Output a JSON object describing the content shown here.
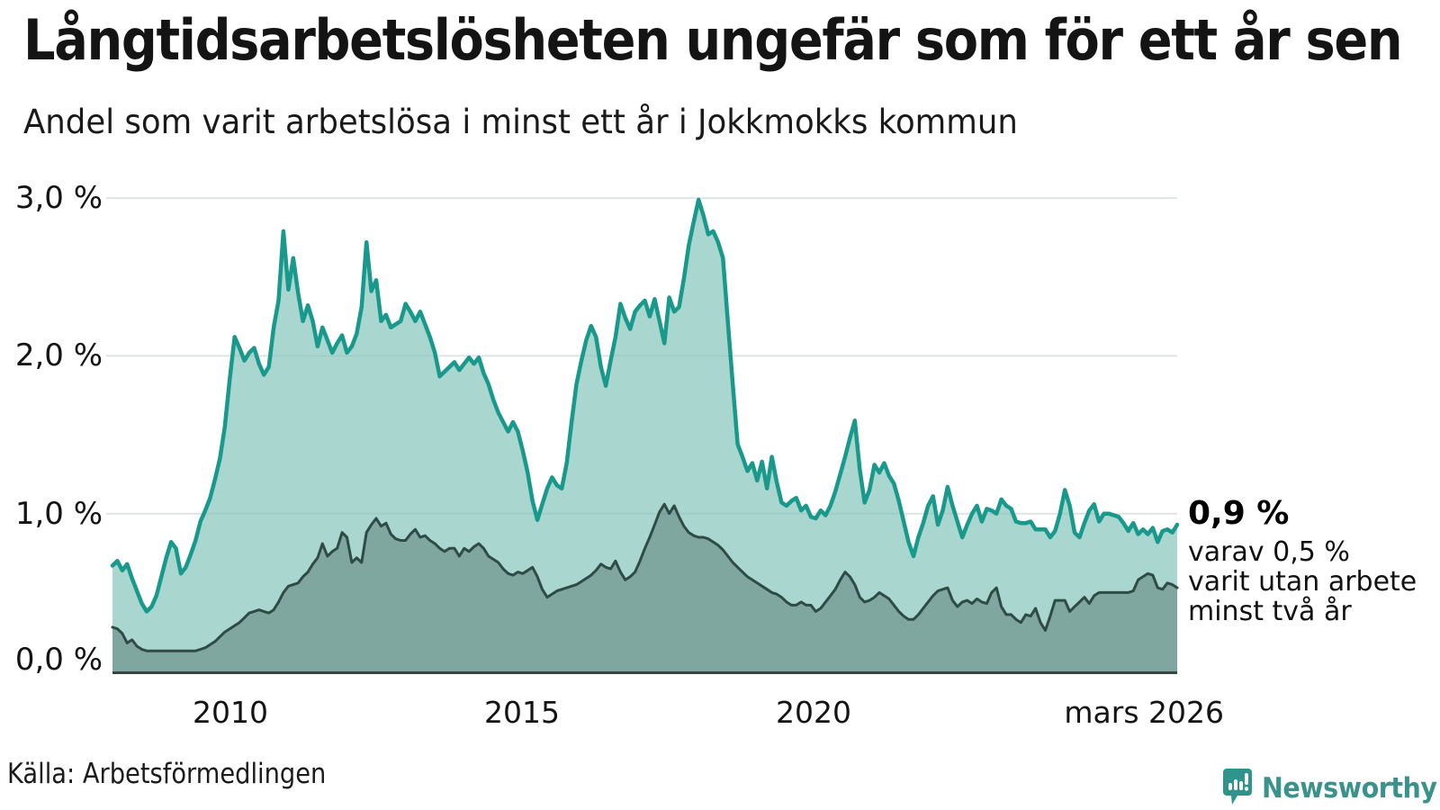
{
  "title": "Långtidsarbetslösheten ungefär som för ett år sen",
  "subtitle": "Andel som varit arbetslösa i minst ett år i Jokkmokks kommun",
  "source": "Källa: Arbetsförmedlingen",
  "branding": {
    "name": "Newsworthy",
    "bubble_color": "#2e948c",
    "text_color": "#3a928b"
  },
  "annotation": {
    "value_label": "0,9 %",
    "line1": "varav 0,5 %",
    "line2": "varit utan arbete",
    "line3": "minst två år"
  },
  "colors": {
    "line_1yr": "#18998b",
    "fill_1yr": "#84c4ba",
    "line_2yr": "#2e4b46",
    "fill_2yr_overlay": "#2e4b46",
    "gridline": "#e0e4e4",
    "axis_line": "#3a4542",
    "text": "#141414"
  },
  "chart_data": {
    "type": "area",
    "title": "Långtidsarbetslösheten ungefär som för ett år sen",
    "subtitle": "Andel som varit arbetslösa i minst ett år i Jokkmokks kommun",
    "unit": "%",
    "x_start": "2008-01",
    "x_end": "2026-03",
    "x_tick_labels": [
      "2010",
      "2015",
      "2020",
      "mars 2026"
    ],
    "y_tick_labels": [
      "0,0 %",
      "1,0 %",
      "2,0 %",
      "3,0 %"
    ],
    "y_tick_values": [
      0,
      1,
      2,
      3
    ],
    "ylim": [
      0,
      3.2
    ],
    "grid": true,
    "legend_position": "right-annotation",
    "series": [
      {
        "name": "Arbetslösa minst ett år",
        "end_label": "0,9 %",
        "values": [
          0.67,
          0.7,
          0.64,
          0.68,
          0.59,
          0.51,
          0.43,
          0.38,
          0.41,
          0.48,
          0.6,
          0.72,
          0.82,
          0.78,
          0.62,
          0.66,
          0.74,
          0.83,
          0.95,
          1.02,
          1.1,
          1.22,
          1.35,
          1.55,
          1.85,
          2.12,
          2.05,
          1.97,
          2.02,
          2.05,
          1.95,
          1.88,
          1.93,
          2.18,
          2.35,
          2.79,
          2.42,
          2.62,
          2.4,
          2.22,
          2.32,
          2.22,
          2.06,
          2.18,
          2.1,
          2.02,
          2.08,
          2.13,
          2.02,
          2.06,
          2.14,
          2.31,
          2.72,
          2.41,
          2.48,
          2.22,
          2.26,
          2.18,
          2.2,
          2.22,
          2.33,
          2.28,
          2.22,
          2.28,
          2.2,
          2.12,
          2.02,
          1.87,
          1.9,
          1.93,
          1.96,
          1.91,
          1.95,
          1.99,
          1.95,
          1.99,
          1.89,
          1.82,
          1.72,
          1.64,
          1.58,
          1.52,
          1.58,
          1.52,
          1.4,
          1.26,
          1.08,
          0.96,
          1.06,
          1.16,
          1.23,
          1.18,
          1.16,
          1.32,
          1.58,
          1.82,
          1.97,
          2.1,
          2.19,
          2.12,
          1.93,
          1.81,
          1.97,
          2.12,
          2.33,
          2.24,
          2.17,
          2.28,
          2.32,
          2.35,
          2.25,
          2.36,
          2.22,
          2.08,
          2.37,
          2.28,
          2.31,
          2.49,
          2.7,
          2.85,
          2.99,
          2.89,
          2.77,
          2.79,
          2.72,
          2.62,
          2.21,
          1.82,
          1.44,
          1.36,
          1.27,
          1.32,
          1.21,
          1.33,
          1.16,
          1.36,
          1.2,
          1.07,
          1.05,
          1.08,
          1.1,
          1.02,
          1.05,
          0.98,
          0.97,
          1.02,
          0.99,
          1.05,
          1.14,
          1.25,
          1.36,
          1.48,
          1.59,
          1.28,
          1.07,
          1.15,
          1.31,
          1.26,
          1.32,
          1.24,
          1.19,
          1.08,
          0.95,
          0.82,
          0.73,
          0.85,
          0.94,
          1.05,
          1.11,
          0.93,
          1.02,
          1.17,
          1.05,
          0.95,
          0.85,
          0.93,
          1.0,
          1.05,
          0.95,
          1.03,
          1.02,
          1.0,
          1.09,
          1.05,
          1.03,
          0.95,
          0.94,
          0.94,
          0.95,
          0.9,
          0.9,
          0.9,
          0.85,
          0.89,
          1.0,
          1.15,
          1.05,
          0.88,
          0.85,
          0.94,
          1.02,
          1.06,
          0.95,
          1.0,
          1.0,
          0.99,
          0.98,
          0.94,
          0.89,
          0.94,
          0.87,
          0.9,
          0.87,
          0.91,
          0.82,
          0.89,
          0.9,
          0.88,
          0.93
        ]
      },
      {
        "name": "varav varit utan arbete minst två år",
        "end_label": "0,5 %",
        "values": [
          0.28,
          0.27,
          0.24,
          0.18,
          0.2,
          0.16,
          0.14,
          0.13,
          0.13,
          0.13,
          0.13,
          0.13,
          0.13,
          0.13,
          0.13,
          0.13,
          0.13,
          0.13,
          0.14,
          0.15,
          0.17,
          0.19,
          0.22,
          0.25,
          0.27,
          0.29,
          0.31,
          0.34,
          0.37,
          0.38,
          0.39,
          0.38,
          0.37,
          0.39,
          0.44,
          0.5,
          0.54,
          0.55,
          0.56,
          0.6,
          0.63,
          0.68,
          0.72,
          0.81,
          0.73,
          0.76,
          0.78,
          0.88,
          0.85,
          0.69,
          0.72,
          0.69,
          0.88,
          0.93,
          0.97,
          0.92,
          0.94,
          0.87,
          0.84,
          0.83,
          0.83,
          0.87,
          0.9,
          0.85,
          0.86,
          0.83,
          0.81,
          0.78,
          0.76,
          0.78,
          0.78,
          0.73,
          0.78,
          0.76,
          0.79,
          0.81,
          0.78,
          0.73,
          0.71,
          0.69,
          0.65,
          0.62,
          0.61,
          0.63,
          0.62,
          0.64,
          0.66,
          0.6,
          0.52,
          0.47,
          0.49,
          0.51,
          0.52,
          0.53,
          0.54,
          0.55,
          0.57,
          0.59,
          0.61,
          0.64,
          0.68,
          0.66,
          0.65,
          0.7,
          0.63,
          0.58,
          0.6,
          0.63,
          0.7,
          0.78,
          0.85,
          0.93,
          1.01,
          1.06,
          1.0,
          1.05,
          0.98,
          0.92,
          0.88,
          0.86,
          0.85,
          0.85,
          0.84,
          0.82,
          0.8,
          0.77,
          0.73,
          0.69,
          0.66,
          0.63,
          0.6,
          0.58,
          0.56,
          0.54,
          0.52,
          0.5,
          0.49,
          0.47,
          0.44,
          0.42,
          0.42,
          0.44,
          0.42,
          0.42,
          0.38,
          0.4,
          0.44,
          0.48,
          0.52,
          0.58,
          0.63,
          0.6,
          0.55,
          0.47,
          0.44,
          0.45,
          0.47,
          0.5,
          0.48,
          0.46,
          0.42,
          0.38,
          0.35,
          0.33,
          0.33,
          0.36,
          0.4,
          0.44,
          0.48,
          0.51,
          0.52,
          0.53,
          0.45,
          0.41,
          0.44,
          0.45,
          0.43,
          0.46,
          0.44,
          0.43,
          0.5,
          0.53,
          0.41,
          0.36,
          0.36,
          0.33,
          0.31,
          0.36,
          0.35,
          0.4,
          0.31,
          0.26,
          0.35,
          0.45,
          0.45,
          0.45,
          0.38,
          0.41,
          0.44,
          0.47,
          0.43,
          0.48,
          0.5,
          0.5,
          0.5,
          0.5,
          0.5,
          0.5,
          0.5,
          0.51,
          0.58,
          0.6,
          0.62,
          0.61,
          0.53,
          0.52,
          0.56,
          0.55,
          0.53
        ]
      }
    ]
  }
}
